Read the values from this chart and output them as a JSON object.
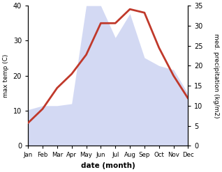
{
  "months": [
    "Jan",
    "Feb",
    "Mar",
    "Apr",
    "May",
    "Jun",
    "Jul",
    "Aug",
    "Sep",
    "Oct",
    "Nov",
    "Dec"
  ],
  "temp": [
    6.5,
    10.5,
    16.5,
    20.5,
    26.0,
    35.0,
    35.0,
    39.0,
    38.0,
    28.0,
    20.0,
    13.5
  ],
  "precip": [
    9.0,
    10.0,
    10.0,
    10.5,
    35.0,
    35.0,
    27.0,
    33.0,
    22.0,
    20.0,
    19.0,
    13.0
  ],
  "temp_color": "#c0392b",
  "precip_fill_color": "#c5cdf0",
  "left_ylim": [
    0,
    40
  ],
  "right_ylim": [
    0,
    35
  ],
  "left_yticks": [
    0,
    10,
    20,
    30,
    40
  ],
  "right_yticks": [
    0,
    5,
    10,
    15,
    20,
    25,
    30,
    35
  ],
  "xlabel": "date (month)",
  "ylabel_left": "max temp (C)",
  "ylabel_right": "med. precipitation (kg/m2)",
  "temp_lw": 2.0,
  "bg_color": "#ffffff",
  "precip_alpha": 0.75
}
